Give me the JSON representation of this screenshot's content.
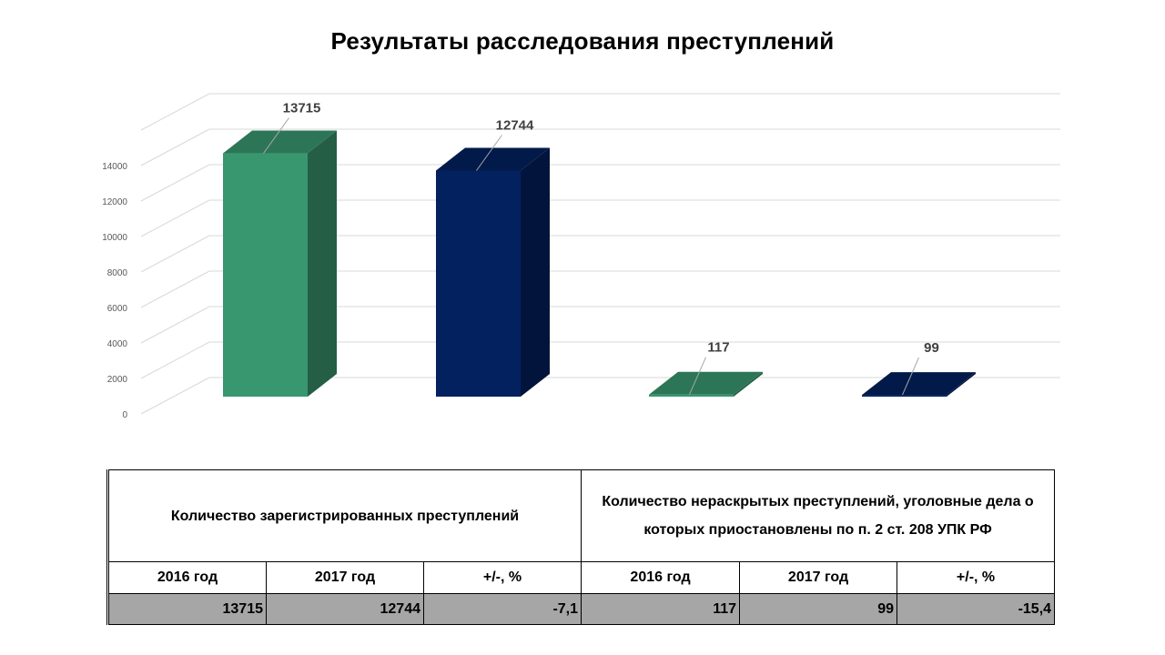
{
  "title": "Результаты расследования преступлений",
  "chart_data": {
    "type": "bar",
    "title": "Результаты расследования преступлений",
    "categories": [
      "",
      "",
      "",
      ""
    ],
    "values": [
      13715,
      12744,
      117,
      99
    ],
    "data_labels": [
      "13715",
      "12744",
      "117",
      "99"
    ],
    "colors": [
      "#38976f",
      "#03215f",
      "#38976f",
      "#03215f"
    ],
    "y_ticks": [
      "0",
      "2000",
      "4000",
      "6000",
      "8000",
      "10000",
      "12000",
      "14000"
    ],
    "ylim": [
      0,
      16000
    ],
    "grid": true,
    "bar_style": "3d"
  },
  "table": {
    "group_headers": [
      "Количество зарегистрированных преступлений",
      "Количество нераскрытых преступлений, уголовные дела о которых приостановлены по п. 2 ст. 208 УПК РФ"
    ],
    "column_headers": [
      "2016 год",
      "2017 год",
      "+/-, %",
      "2016 год",
      "2017 год",
      "+/-, %"
    ],
    "values": [
      "13715",
      "12744",
      "-7,1",
      "117",
      "99",
      "-15,4"
    ]
  }
}
